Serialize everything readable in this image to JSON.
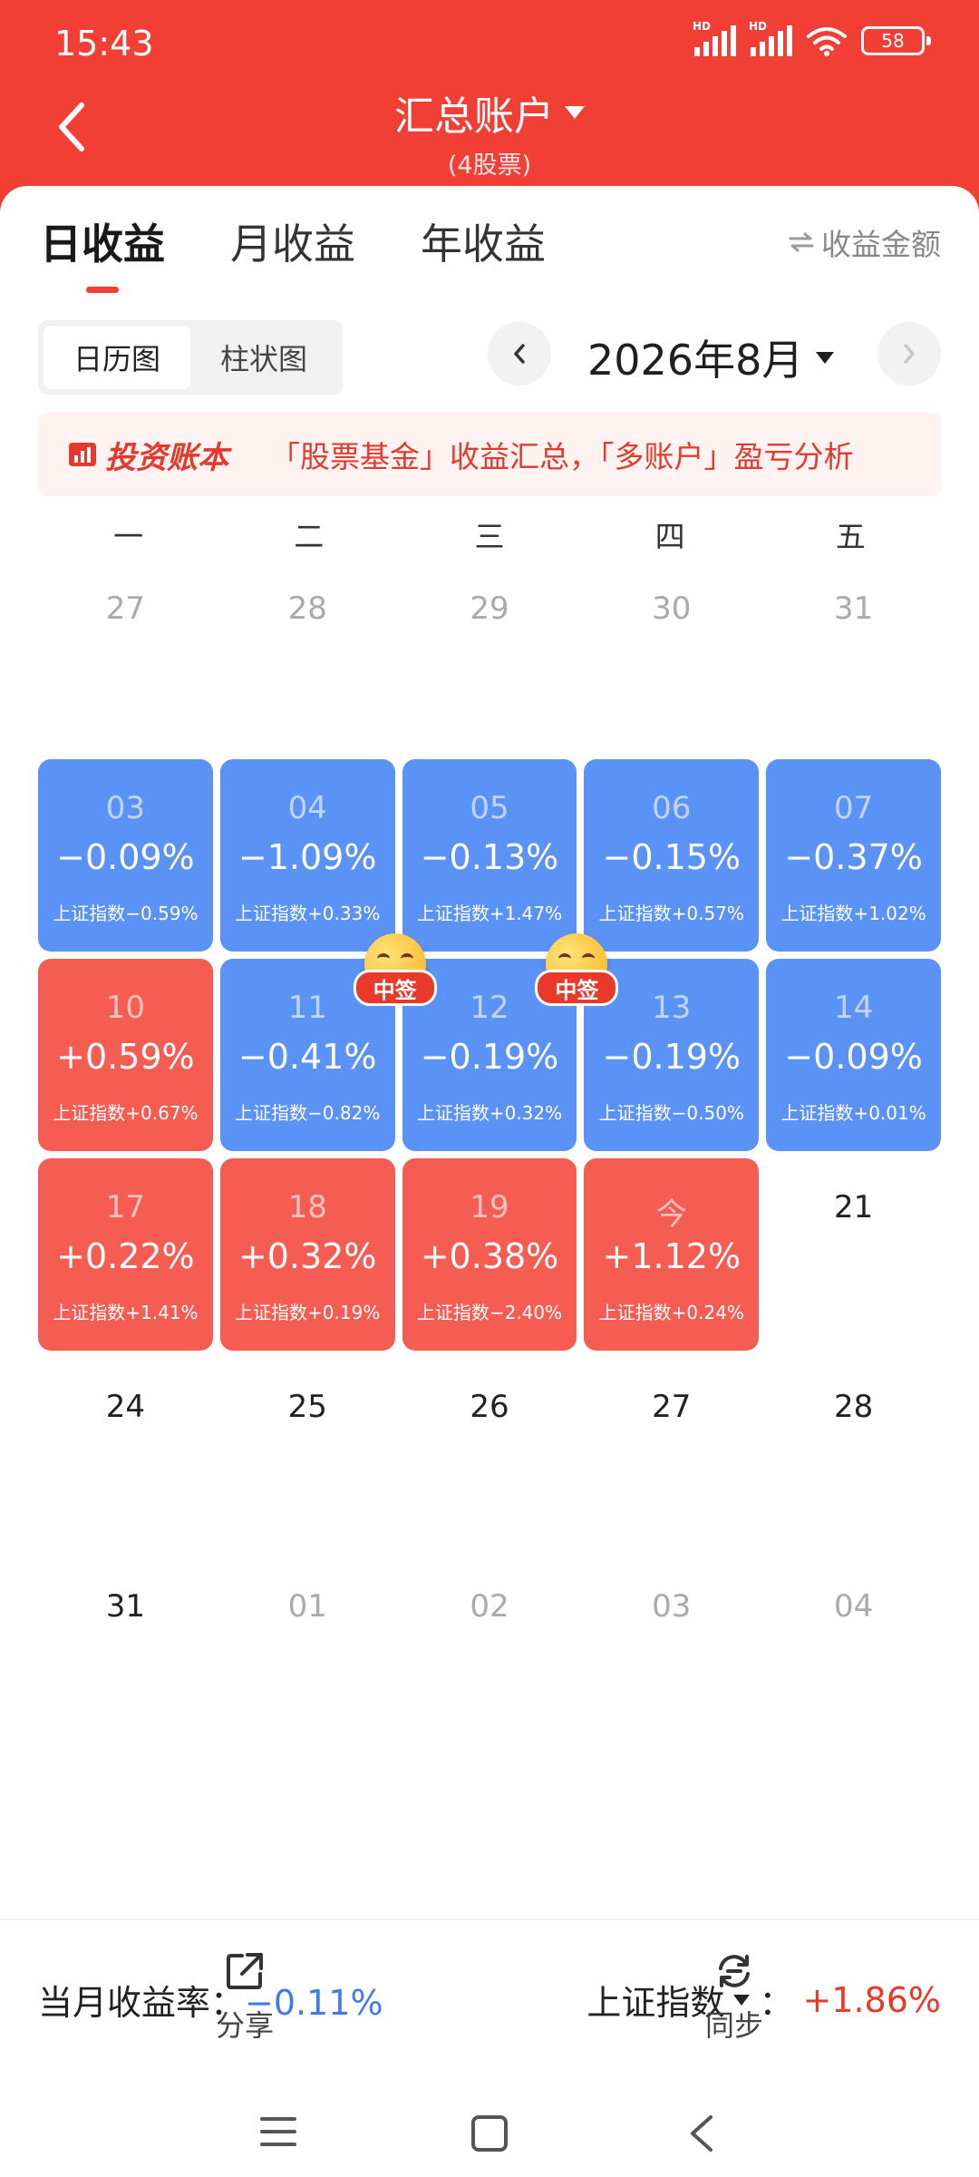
{
  "status": {
    "time": "15:43",
    "hd1": "HD",
    "hd2": "HD",
    "battery": "58"
  },
  "header": {
    "title": "汇总账户",
    "subtitle": "(4股票)"
  },
  "tabs": [
    {
      "label": "日收益"
    },
    {
      "label": "月收益"
    },
    {
      "label": "年收益"
    }
  ],
  "amount_toggle": "收益金额",
  "view_toggle": {
    "calendar": "日历图",
    "bar": "柱状图"
  },
  "month_nav": {
    "label": "2026年8月"
  },
  "banner": {
    "logo": "投资账本",
    "text": "「股票基金」收益汇总，「多账户」盈亏分析"
  },
  "weekdays": [
    "一",
    "二",
    "三",
    "四",
    "五"
  ],
  "calendar": [
    [
      {
        "date": "27",
        "kind": "dim"
      },
      {
        "date": "28",
        "kind": "dim"
      },
      {
        "date": "29",
        "kind": "dim"
      },
      {
        "date": "30",
        "kind": "dim"
      },
      {
        "date": "31",
        "kind": "dim"
      }
    ],
    [
      {
        "date": "03",
        "kind": "blue",
        "pct": "−0.09%",
        "idx": "上证指数−0.59%"
      },
      {
        "date": "04",
        "kind": "blue",
        "pct": "−1.09%",
        "idx": "上证指数+0.33%"
      },
      {
        "date": "05",
        "kind": "blue",
        "pct": "−0.13%",
        "idx": "上证指数+1.47%"
      },
      {
        "date": "06",
        "kind": "blue",
        "pct": "−0.15%",
        "idx": "上证指数+0.57%"
      },
      {
        "date": "07",
        "kind": "blue",
        "pct": "−0.37%",
        "idx": "上证指数+1.02%"
      }
    ],
    [
      {
        "date": "10",
        "kind": "red",
        "pct": "+0.59%",
        "idx": "上证指数+0.67%"
      },
      {
        "date": "11",
        "kind": "blue",
        "pct": "−0.41%",
        "idx": "上证指数−0.82%",
        "badge": "中签"
      },
      {
        "date": "12",
        "kind": "blue",
        "pct": "−0.19%",
        "idx": "上证指数+0.32%",
        "badge": "中签"
      },
      {
        "date": "13",
        "kind": "blue",
        "pct": "−0.19%",
        "idx": "上证指数−0.50%"
      },
      {
        "date": "14",
        "kind": "blue",
        "pct": "−0.09%",
        "idx": "上证指数+0.01%"
      }
    ],
    [
      {
        "date": "17",
        "kind": "red",
        "pct": "+0.22%",
        "idx": "上证指数+1.41%"
      },
      {
        "date": "18",
        "kind": "red",
        "pct": "+0.32%",
        "idx": "上证指数+0.19%"
      },
      {
        "date": "19",
        "kind": "red",
        "pct": "+0.38%",
        "idx": "上证指数−2.40%"
      },
      {
        "date": "今",
        "kind": "red",
        "pct": "+1.12%",
        "idx": "上证指数+0.24%"
      },
      {
        "date": "21",
        "kind": "plain"
      }
    ],
    [
      {
        "date": "24",
        "kind": "plain"
      },
      {
        "date": "25",
        "kind": "plain"
      },
      {
        "date": "26",
        "kind": "plain"
      },
      {
        "date": "27",
        "kind": "plain"
      },
      {
        "date": "28",
        "kind": "plain"
      }
    ],
    [
      {
        "date": "31",
        "kind": "plain"
      },
      {
        "date": "01",
        "kind": "dim"
      },
      {
        "date": "02",
        "kind": "dim"
      },
      {
        "date": "03",
        "kind": "dim"
      },
      {
        "date": "04",
        "kind": "dim"
      }
    ]
  ],
  "summary": {
    "month_label": "当月收益率：",
    "month_value": "−0.11%",
    "index_label": "上证指数",
    "index_sep": "：",
    "index_value": "+1.86%"
  },
  "bottom": {
    "share": "分享",
    "sync": "同步"
  },
  "colors": {
    "header_red": "#f23f36",
    "gain_red": "#f55d53",
    "loss_blue": "#5b92f5",
    "month_return_blue": "#3f7bea",
    "index_red": "#e8392b"
  },
  "icons": [
    "back-chevron-icon",
    "caret-down-icon",
    "swap-arrows-icon",
    "chevron-left-icon",
    "chevron-right-icon",
    "ledger-logo-icon",
    "share-icon",
    "sync-icon",
    "menu-icon",
    "home-square-icon",
    "back-triangle-icon",
    "wifi-icon",
    "signal-icon",
    "battery-icon"
  ]
}
